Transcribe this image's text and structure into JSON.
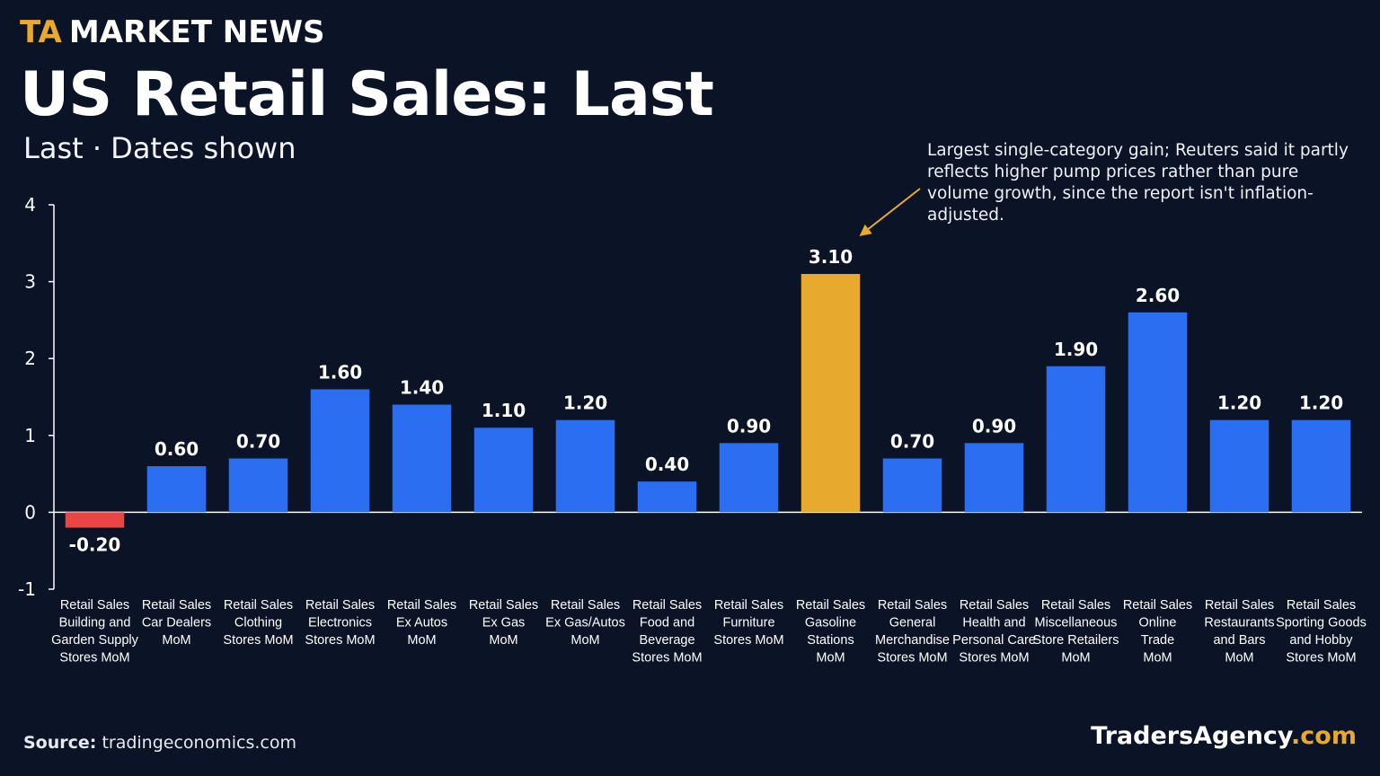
{
  "brand": {
    "ta": "TA",
    "name": "MARKET NEWS"
  },
  "title": "US Retail Sales: Last",
  "subtitle": "Last · Dates shown",
  "annotation": "Largest single-category gain; Reuters said it partly reflects higher pump prices rather than pure volume growth, since the report isn't inflation-adjusted.",
  "source": {
    "label": "Source:",
    "text": "tradingeconomics.com"
  },
  "footer_brand": {
    "name": "TradersAgency",
    "suffix": ".com"
  },
  "colors": {
    "background": "#0b1426",
    "positive": "#2b6ef2",
    "negative": "#e84545",
    "highlight": "#e8a92f",
    "accent": "#e8a92f"
  },
  "chart_data": {
    "type": "bar",
    "categories": [
      [
        "Retail Sales",
        "Building and",
        "Garden Supply",
        "Stores MoM"
      ],
      [
        "Retail Sales",
        "Car Dealers",
        "MoM"
      ],
      [
        "Retail Sales",
        "Clothing",
        "Stores MoM"
      ],
      [
        "Retail Sales",
        "Electronics",
        "Stores MoM"
      ],
      [
        "Retail Sales",
        "Ex Autos",
        "MoM"
      ],
      [
        "Retail Sales",
        "Ex Gas",
        "MoM"
      ],
      [
        "Retail Sales",
        "Ex Gas/Autos",
        "MoM"
      ],
      [
        "Retail Sales",
        "Food and",
        "Beverage",
        "Stores MoM"
      ],
      [
        "Retail Sales",
        "Furniture",
        "Stores MoM"
      ],
      [
        "Retail Sales",
        "Gasoline",
        "Stations",
        "MoM"
      ],
      [
        "Retail Sales",
        "General",
        "Merchandise",
        "Stores MoM"
      ],
      [
        "Retail Sales",
        "Health and",
        "Personal Care",
        "Stores MoM"
      ],
      [
        "Retail Sales",
        "Miscellaneous",
        "Store Retailers",
        "MoM"
      ],
      [
        "Retail Sales",
        "Online",
        "Trade",
        "MoM"
      ],
      [
        "Retail Sales",
        "Restaurants",
        "and Bars",
        "MoM"
      ],
      [
        "Retail Sales",
        "Sporting Goods",
        "and Hobby",
        "Stores MoM"
      ]
    ],
    "values": [
      -0.2,
      0.6,
      0.7,
      1.6,
      1.4,
      1.1,
      1.2,
      0.4,
      0.9,
      3.1,
      0.7,
      0.9,
      1.9,
      2.6,
      1.2,
      1.2
    ],
    "value_labels": [
      "-0.20",
      "0.60",
      "0.70",
      "1.60",
      "1.40",
      "1.10",
      "1.20",
      "0.40",
      "0.90",
      "3.10",
      "0.70",
      "0.90",
      "1.90",
      "2.60",
      "1.20",
      "1.20"
    ],
    "highlight_index": 9,
    "ylim": [
      -1,
      4
    ],
    "yticks": [
      "4",
      "3",
      "2",
      "1",
      "0",
      "-1"
    ],
    "ytick_values": [
      4,
      3,
      2,
      1,
      0,
      -1
    ],
    "grid": false,
    "title": "US Retail Sales: Last",
    "xlabel": "",
    "ylabel": ""
  }
}
